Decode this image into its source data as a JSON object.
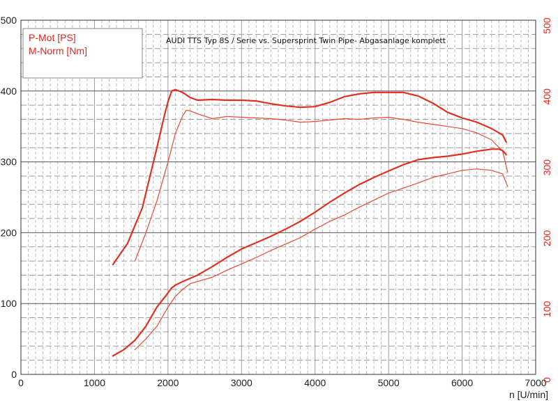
{
  "chart_data": {
    "type": "line",
    "title": "AUDI TTS Typ 8S  /  Serie vs. Supersprint Twin Pipe- Abgasanlage komplett",
    "xlabel": "n [U/min]",
    "xlim": [
      0,
      7000
    ],
    "ylim_left": [
      0,
      500
    ],
    "ylim_right": [
      0,
      500
    ],
    "x_ticks": [
      "0",
      "1000",
      "2000",
      "3000",
      "4000",
      "5000",
      "6000",
      "7000"
    ],
    "y_ticks_left": [
      "0",
      "100",
      "200",
      "300",
      "400",
      "500"
    ],
    "y_ticks_right": [
      "0",
      "100",
      "200",
      "300",
      "400",
      "500"
    ],
    "grid": true,
    "legend": {
      "placement": "top-left",
      "entries": [
        {
          "label": "P-Mot [PS]",
          "color": "#e8231a"
        },
        {
          "label": "M-Norm [Nm]",
          "color": "#e8231a"
        }
      ]
    },
    "series": [
      {
        "color": "#e03020",
        "width": 2.2,
        "x": [
          1250,
          1450,
          1650,
          1850,
          1950,
          2000,
          2050,
          2100,
          2200,
          2300,
          2400,
          2600,
          2800,
          3000,
          3200,
          3400,
          3600,
          3800,
          4000,
          4200,
          4400,
          4600,
          4800,
          5000,
          5200,
          5400,
          5600,
          5800,
          6000,
          6200,
          6400,
          6550,
          6600
        ],
        "y": [
          155,
          185,
          235,
          320,
          365,
          385,
          400,
          402,
          398,
          391,
          387,
          388,
          387,
          387,
          386,
          382,
          379,
          377,
          378,
          384,
          392,
          396,
          398,
          398,
          398,
          393,
          383,
          370,
          362,
          356,
          347,
          338,
          328
        ]
      },
      {
        "color": "#e84a30",
        "width": 1.2,
        "x": [
          1550,
          1700,
          1850,
          2000,
          2100,
          2200,
          2250,
          2300,
          2400,
          2600,
          2800,
          3000,
          3200,
          3400,
          3600,
          3800,
          4000,
          4200,
          4400,
          4600,
          4800,
          5000,
          5200,
          5400,
          5600,
          5800,
          6000,
          6200,
          6400,
          6550,
          6620
        ],
        "y": [
          160,
          200,
          245,
          300,
          340,
          365,
          373,
          372,
          368,
          361,
          364,
          363,
          362,
          361,
          359,
          356,
          357,
          359,
          361,
          360,
          362,
          363,
          360,
          356,
          353,
          350,
          347,
          341,
          331,
          315,
          285
        ]
      },
      {
        "color": "#e03020",
        "width": 2.2,
        "x": [
          1250,
          1400,
          1550,
          1700,
          1850,
          2000,
          2050,
          2100,
          2200,
          2400,
          2600,
          2800,
          3000,
          3200,
          3400,
          3600,
          3800,
          4000,
          4200,
          4400,
          4600,
          4800,
          5000,
          5200,
          5400,
          5600,
          5800,
          6000,
          6200,
          6400,
          6500,
          6550,
          6600
        ],
        "y": [
          26,
          35,
          48,
          68,
          95,
          115,
          122,
          126,
          131,
          140,
          152,
          165,
          177,
          186,
          195,
          205,
          216,
          229,
          243,
          256,
          268,
          278,
          287,
          296,
          303,
          306,
          308,
          311,
          315,
          318,
          318,
          316,
          310
        ]
      },
      {
        "color": "#e84a30",
        "width": 1.2,
        "x": [
          1550,
          1700,
          1850,
          2000,
          2100,
          2200,
          2300,
          2400,
          2600,
          2800,
          3000,
          3200,
          3400,
          3600,
          3800,
          4000,
          4200,
          4400,
          4600,
          4800,
          5000,
          5200,
          5400,
          5600,
          5800,
          6000,
          6200,
          6400,
          6550,
          6620
        ],
        "y": [
          35,
          50,
          68,
          95,
          110,
          120,
          128,
          131,
          137,
          147,
          156,
          165,
          175,
          184,
          193,
          205,
          216,
          225,
          236,
          246,
          256,
          263,
          270,
          278,
          283,
          288,
          290,
          288,
          283,
          265
        ]
      }
    ]
  }
}
